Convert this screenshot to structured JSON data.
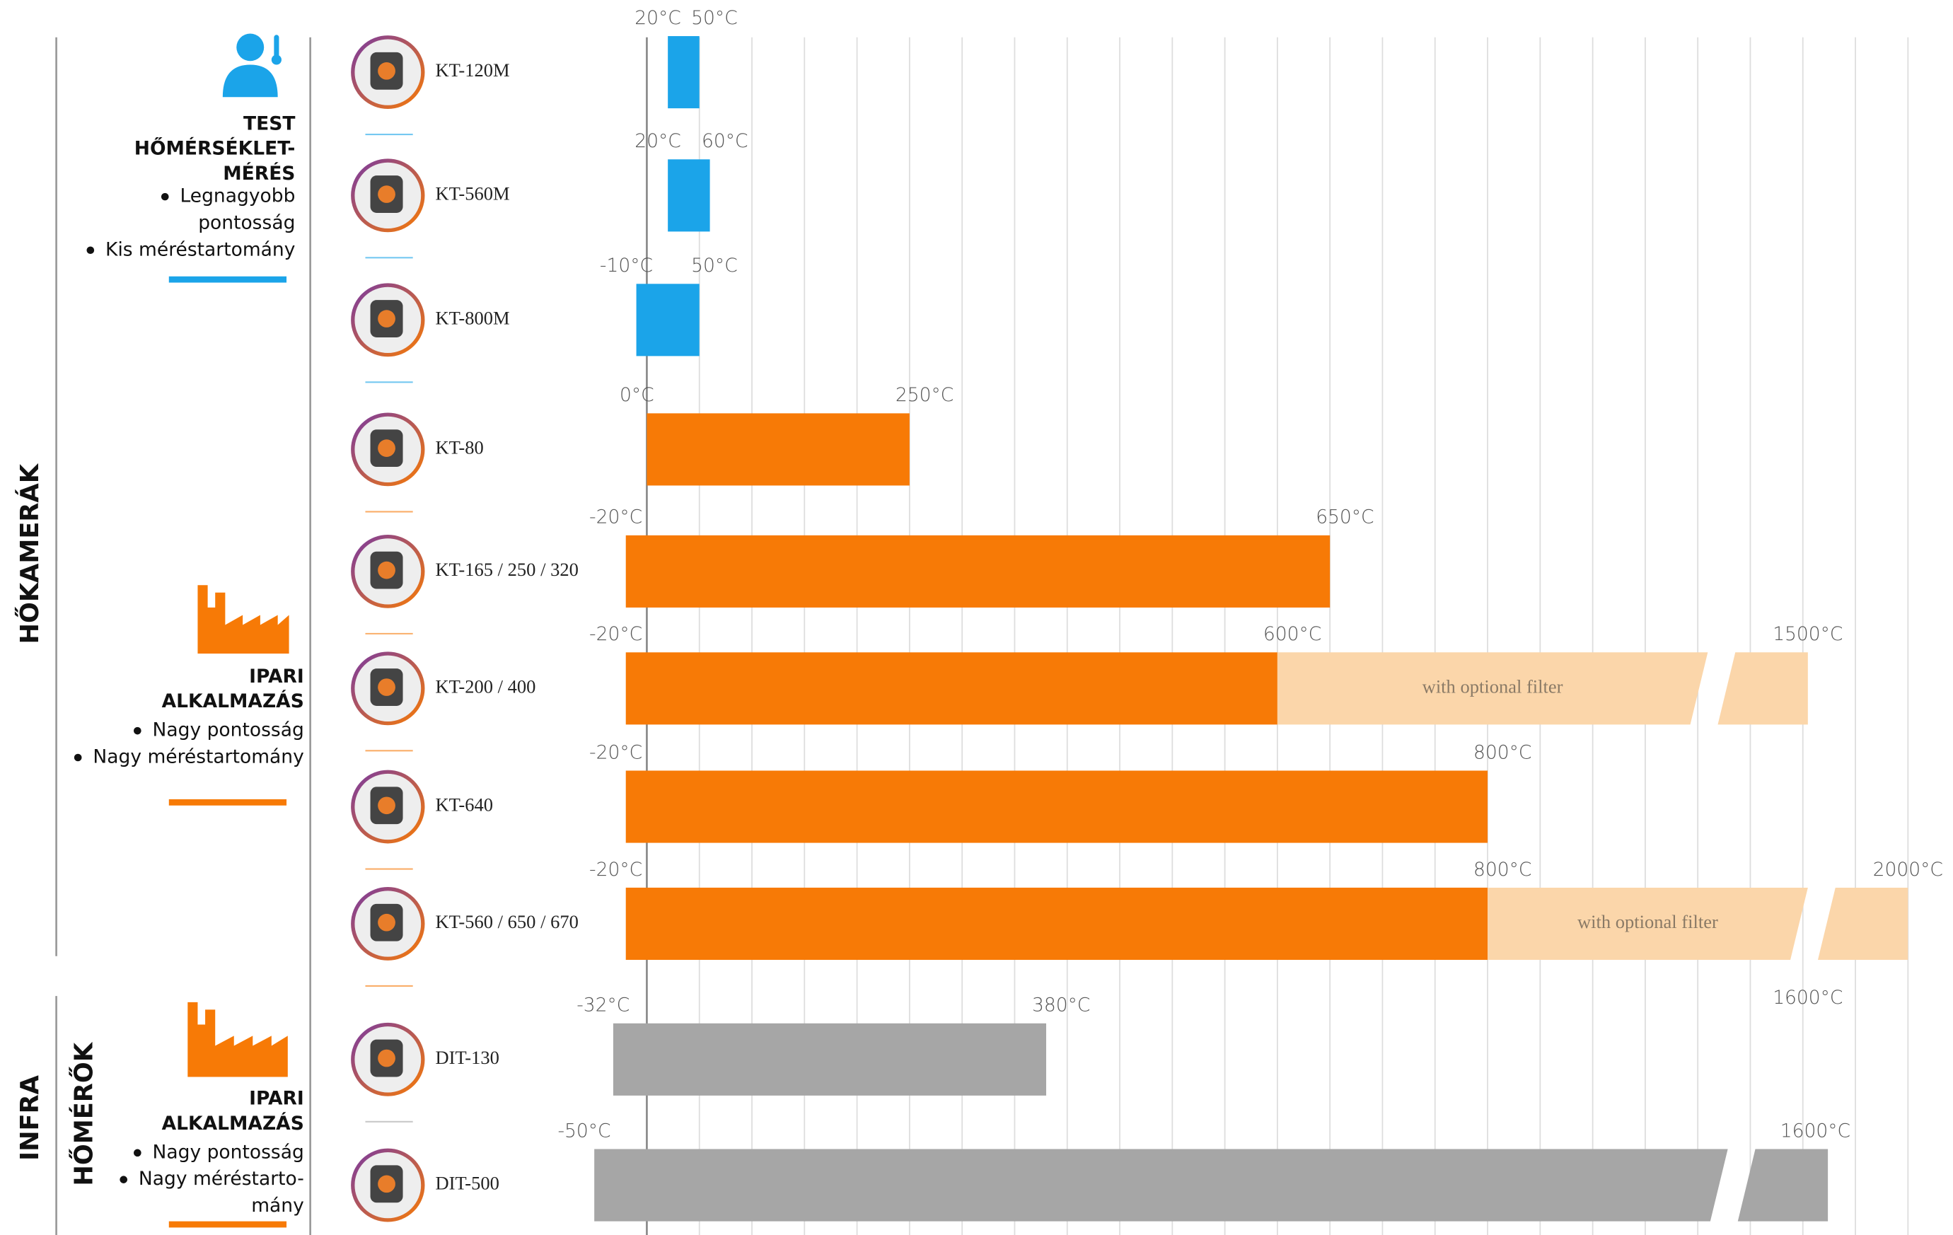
{
  "chart_data": {
    "type": "range_bar",
    "categories": [
      "KT-120M",
      "KT-560M",
      "KT-800M",
      "KT-80",
      "KT-165 / 250 / 320",
      "KT-200 / 400",
      "KT-640",
      "KT-560 / 650 / 670",
      "DIT-130",
      "DIT-500"
    ],
    "low": [
      20,
      20,
      -10,
      0,
      -20,
      -20,
      -20,
      -20,
      -32,
      -50
    ],
    "low_labels": [
      "20°C",
      "20°C",
      "-10°C",
      "0°C",
      "-20°C",
      "-20°C",
      "-20°C",
      "-20°C",
      "-32°C",
      "-50°C"
    ],
    "high": [
      50,
      60,
      50,
      250,
      650,
      600,
      800,
      800,
      380,
      1600
    ],
    "high_labels": [
      "50°C",
      "60°C",
      "50°C",
      "250°C",
      "650°C",
      "600°C",
      "800°C",
      "800°C",
      "380°C",
      "1600°C"
    ],
    "filter_high": [
      null,
      null,
      null,
      null,
      null,
      1500,
      null,
      2000,
      null,
      null
    ],
    "filter_high_labels": [
      null,
      null,
      null,
      null,
      null,
      "1500°C",
      null,
      "2000°C",
      null,
      null
    ],
    "filter_note": "with optional filter",
    "side_labels": [
      null,
      null,
      null,
      null,
      null,
      null,
      null,
      null,
      "1600°C",
      null
    ],
    "colors": [
      "#1ba4e9",
      "#1ba4e9",
      "#1ba4e9",
      "#f77a06",
      "#f77a06",
      "#f77a06",
      "#f77a06",
      "#f77a06",
      "#a6a6a6",
      "#a6a6a6"
    ],
    "filter_color": "#fbd6aa",
    "xlim": [
      -60,
      1200
    ],
    "xticks": [
      0,
      50,
      100,
      150,
      200,
      250,
      300,
      350,
      400,
      450,
      500,
      550,
      600,
      650,
      700,
      750,
      800,
      850,
      900,
      950,
      1000,
      1050,
      1100,
      1150,
      1200
    ],
    "grid": true
  },
  "sections": {
    "cameras": "HŐKAMERÁK",
    "thermometers": [
      "INFRA",
      "HŐMÉRŐK"
    ]
  },
  "groups": [
    {
      "title": [
        "TEST",
        "HŐMÉRSÉKLET-",
        "MÉRÉS"
      ],
      "bullets": [
        [
          "Legnagyobb",
          "pontosság"
        ],
        [
          "Kis méréstartomány"
        ]
      ]
    },
    {
      "title": [
        "IPARI",
        "ALKALMAZÁS"
      ],
      "bullets": [
        [
          "Nagy  pontosság"
        ],
        [
          "Nagy méréstartomány"
        ]
      ]
    },
    {
      "title": [
        "IPARI",
        "ALKALMAZÁS"
      ],
      "bullets": [
        [
          "Nagy  pontosság"
        ],
        [
          "Nagy méréstarto-",
          "mány"
        ]
      ]
    }
  ]
}
